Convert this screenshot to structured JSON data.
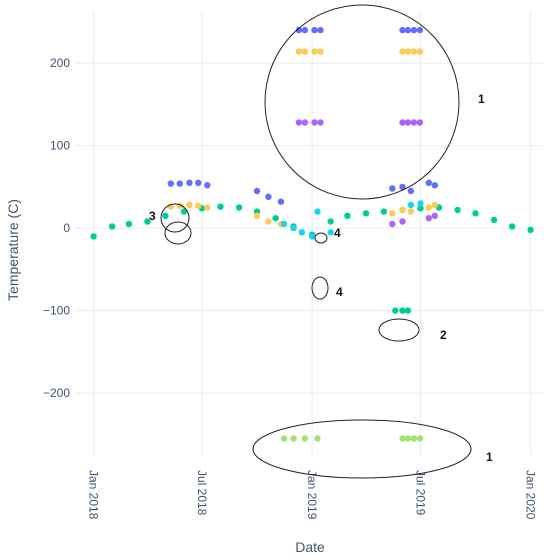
{
  "chart_data": {
    "type": "scatter",
    "title": "",
    "xlabel": "Date",
    "ylabel": "Temperature (C)",
    "xlim": [
      "2017-12-01",
      "2020-01-25"
    ],
    "ylim": [
      -275,
      262
    ],
    "grid": true,
    "legend": "none",
    "x_ticks": [
      {
        "date": "2018-01-01",
        "label": "Jan 2018"
      },
      {
        "date": "2018-07-01",
        "label": "Jul 2018"
      },
      {
        "date": "2019-01-01",
        "label": "Jan 2019"
      },
      {
        "date": "2019-07-01",
        "label": "Jul 2019"
      },
      {
        "date": "2020-01-01",
        "label": "Jan 2020"
      }
    ],
    "y_ticks": [
      200,
      100,
      0,
      -100,
      -200
    ],
    "y_tick_labels": [
      "200",
      "100",
      "0",
      "−100",
      "−200"
    ],
    "series_colors": {
      "green": "#00cc96",
      "blue": "#636efa",
      "orange": "#fecb52",
      "cyan": "#19d3f3",
      "purple": "#ab63fa",
      "light_green": "#a5e070"
    },
    "series": [
      {
        "color": "green",
        "x": [
          "2018-01-01",
          "2018-02-01",
          "2018-03-01",
          "2018-04-01",
          "2018-05-01",
          "2018-06-01",
          "2018-07-01",
          "2018-08-01",
          "2018-09-01",
          "2018-10-01",
          "2018-11-01",
          "2018-12-01",
          "2019-01-01",
          "2019-02-01",
          "2019-03-01",
          "2019-04-01",
          "2019-05-01",
          "2019-06-01",
          "2019-07-01",
          "2019-08-01",
          "2019-09-01",
          "2019-10-01",
          "2019-11-01",
          "2019-12-01",
          "2020-01-01"
        ],
        "y": [
          -10,
          2,
          5,
          8,
          15,
          20,
          24,
          26,
          25,
          20,
          12,
          2,
          -8,
          8,
          15,
          18,
          20,
          22,
          24,
          25,
          22,
          18,
          10,
          2,
          -2
        ]
      },
      {
        "color": "blue",
        "x": [
          "2018-05-10",
          "2018-05-25",
          "2018-06-10",
          "2018-06-25",
          "2018-07-10",
          "2018-10-01",
          "2018-10-20",
          "2018-11-10",
          "2019-05-15",
          "2019-06-01",
          "2019-06-15",
          "2019-07-15",
          "2019-07-25"
        ],
        "y": [
          54,
          54,
          55,
          55,
          52,
          45,
          38,
          32,
          48,
          50,
          45,
          55,
          52
        ]
      },
      {
        "color": "orange",
        "x": [
          "2018-05-10",
          "2018-05-25",
          "2018-06-10",
          "2018-06-25",
          "2018-07-10",
          "2018-10-01",
          "2018-10-20",
          "2018-11-10",
          "2019-05-15",
          "2019-06-01",
          "2019-06-15",
          "2019-07-15",
          "2019-07-25"
        ],
        "y": [
          26,
          27,
          28,
          27,
          25,
          15,
          8,
          5,
          18,
          22,
          20,
          25,
          28
        ]
      },
      {
        "color": "cyan",
        "x": [
          "2018-11-15",
          "2018-12-01",
          "2018-12-15",
          "2019-01-01",
          "2019-01-10",
          "2019-02-01",
          "2019-06-15",
          "2019-07-01"
        ],
        "y": [
          5,
          0,
          -5,
          -10,
          20,
          -5,
          28,
          30
        ]
      },
      {
        "color": "purple",
        "x": [
          "2019-05-15",
          "2019-06-01",
          "2019-07-15",
          "2019-07-25"
        ],
        "y": [
          5,
          8,
          12,
          15
        ]
      },
      {
        "color": "blue",
        "x": [
          "2018-12-10",
          "2018-12-20",
          "2019-01-05",
          "2019-01-15"
        ],
        "y": [
          240,
          240,
          240,
          240
        ]
      },
      {
        "color": "blue",
        "x": [
          "2019-06-01",
          "2019-06-10",
          "2019-06-20",
          "2019-06-30"
        ],
        "y": [
          240,
          240,
          240,
          240
        ]
      },
      {
        "color": "orange",
        "x": [
          "2018-12-10",
          "2018-12-20",
          "2019-01-05",
          "2019-01-15"
        ],
        "y": [
          214,
          214,
          214,
          214
        ]
      },
      {
        "color": "orange",
        "x": [
          "2019-06-01",
          "2019-06-10",
          "2019-06-20",
          "2019-06-30"
        ],
        "y": [
          214,
          214,
          214,
          214
        ]
      },
      {
        "color": "purple",
        "x": [
          "2018-12-10",
          "2018-12-20",
          "2019-01-05",
          "2019-01-15"
        ],
        "y": [
          128,
          128,
          128,
          128
        ]
      },
      {
        "color": "purple",
        "x": [
          "2019-06-01",
          "2019-06-10",
          "2019-06-20",
          "2019-06-30"
        ],
        "y": [
          128,
          128,
          128,
          128
        ]
      },
      {
        "color": "green",
        "x": [
          "2019-05-20",
          "2019-06-01",
          "2019-06-10"
        ],
        "y": [
          -100,
          -100,
          -100
        ]
      },
      {
        "color": "light_green",
        "x": [
          "2018-11-15",
          "2018-12-01",
          "2018-12-20",
          "2019-01-10"
        ],
        "y": [
          -255,
          -255,
          -255,
          -255
        ]
      },
      {
        "color": "light_green",
        "x": [
          "2019-06-01",
          "2019-06-10",
          "2019-06-20",
          "2019-06-30"
        ],
        "y": [
          -255,
          -255,
          -255,
          -255
        ]
      }
    ],
    "annotations": [
      {
        "label": "1",
        "shape": "circle",
        "x": "2019-02-15",
        "y": 200
      },
      {
        "label": "1",
        "shape": "ellipse",
        "x": "2019-04-10",
        "y": -260
      },
      {
        "label": "2",
        "shape": "ellipse",
        "x": "2019-06-10",
        "y": -105
      },
      {
        "label": "3",
        "shape": "ellipse",
        "x": "2018-05-20",
        "y": 45
      },
      {
        "label": "4",
        "shape": "ellipse",
        "x": "2019-01-15",
        "y": 20
      },
      {
        "label": "4",
        "shape": "ellipse",
        "x": "2019-01-15",
        "y": -50
      }
    ]
  }
}
